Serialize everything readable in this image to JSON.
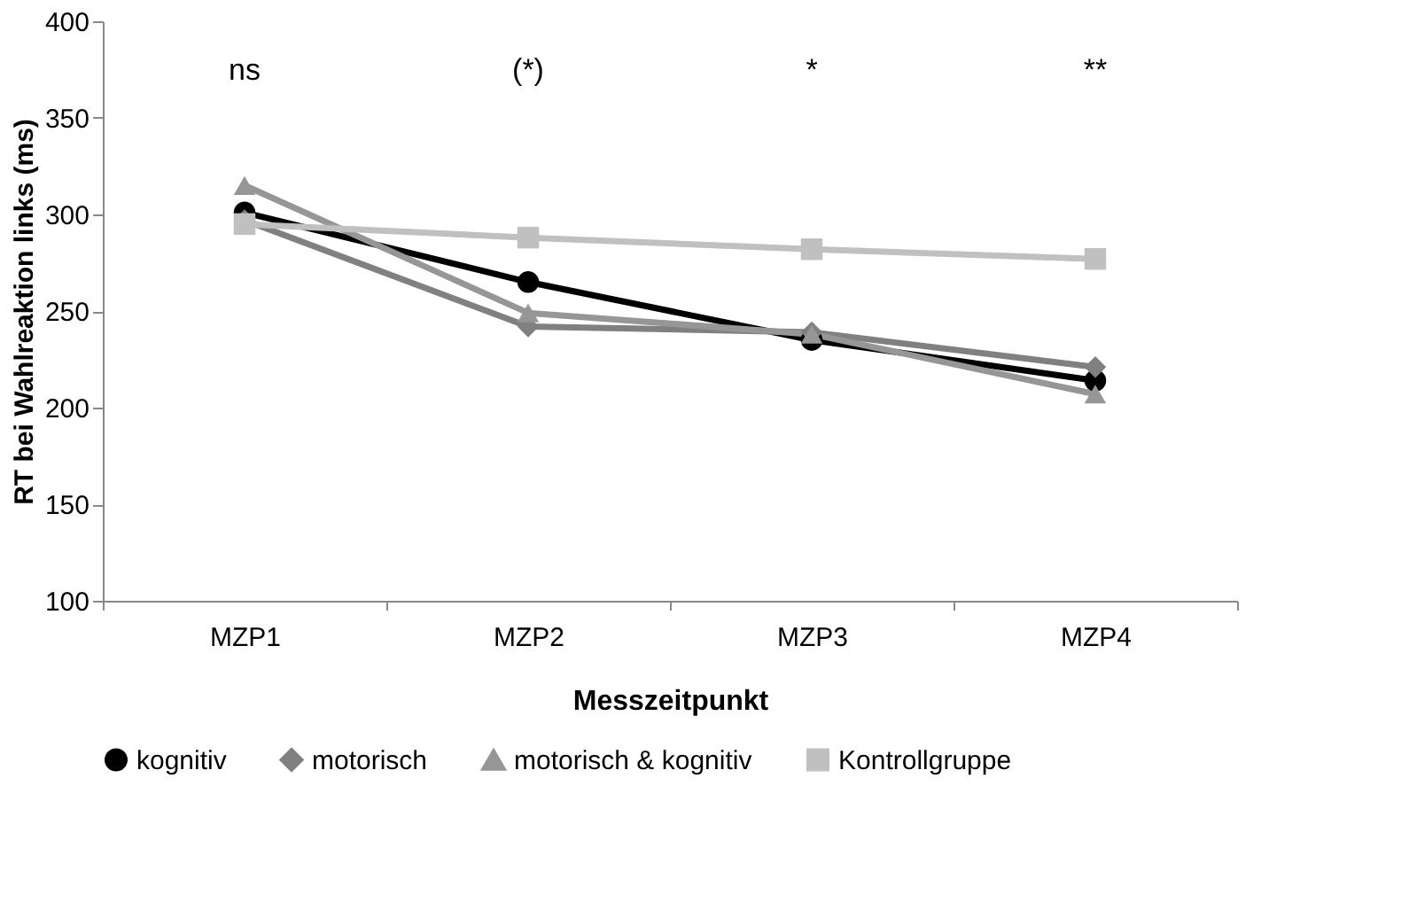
{
  "chart_data": {
    "type": "line",
    "xlabel": "Messzeitpunkt",
    "ylabel": "RT bei Wahlreaktion links (ms)",
    "categories": [
      "MZP1",
      "MZP2",
      "MZP3",
      "MZP4"
    ],
    "series": [
      {
        "name": "kognitiv",
        "color": "#000000",
        "marker": "circle",
        "values": [
          301,
          265,
          235,
          214
        ]
      },
      {
        "name": "motorisch",
        "color": "#808080",
        "marker": "diamond",
        "values": [
          297,
          242,
          239,
          221
        ]
      },
      {
        "name": "motorisch & kognitiv",
        "color": "#969696",
        "marker": "triangle",
        "values": [
          315,
          249,
          238,
          207
        ]
      },
      {
        "name": "Kontrollgruppe",
        "color": "#c0c0c0",
        "marker": "square",
        "values": [
          295,
          288,
          282,
          277
        ]
      }
    ],
    "ylim": [
      100,
      400
    ],
    "yticks": [
      100,
      150,
      200,
      250,
      300,
      350,
      400
    ],
    "annotations": [
      "ns",
      "(*)",
      "*",
      "**"
    ],
    "grid": false,
    "legend": "bottom",
    "line_style": "solid"
  }
}
